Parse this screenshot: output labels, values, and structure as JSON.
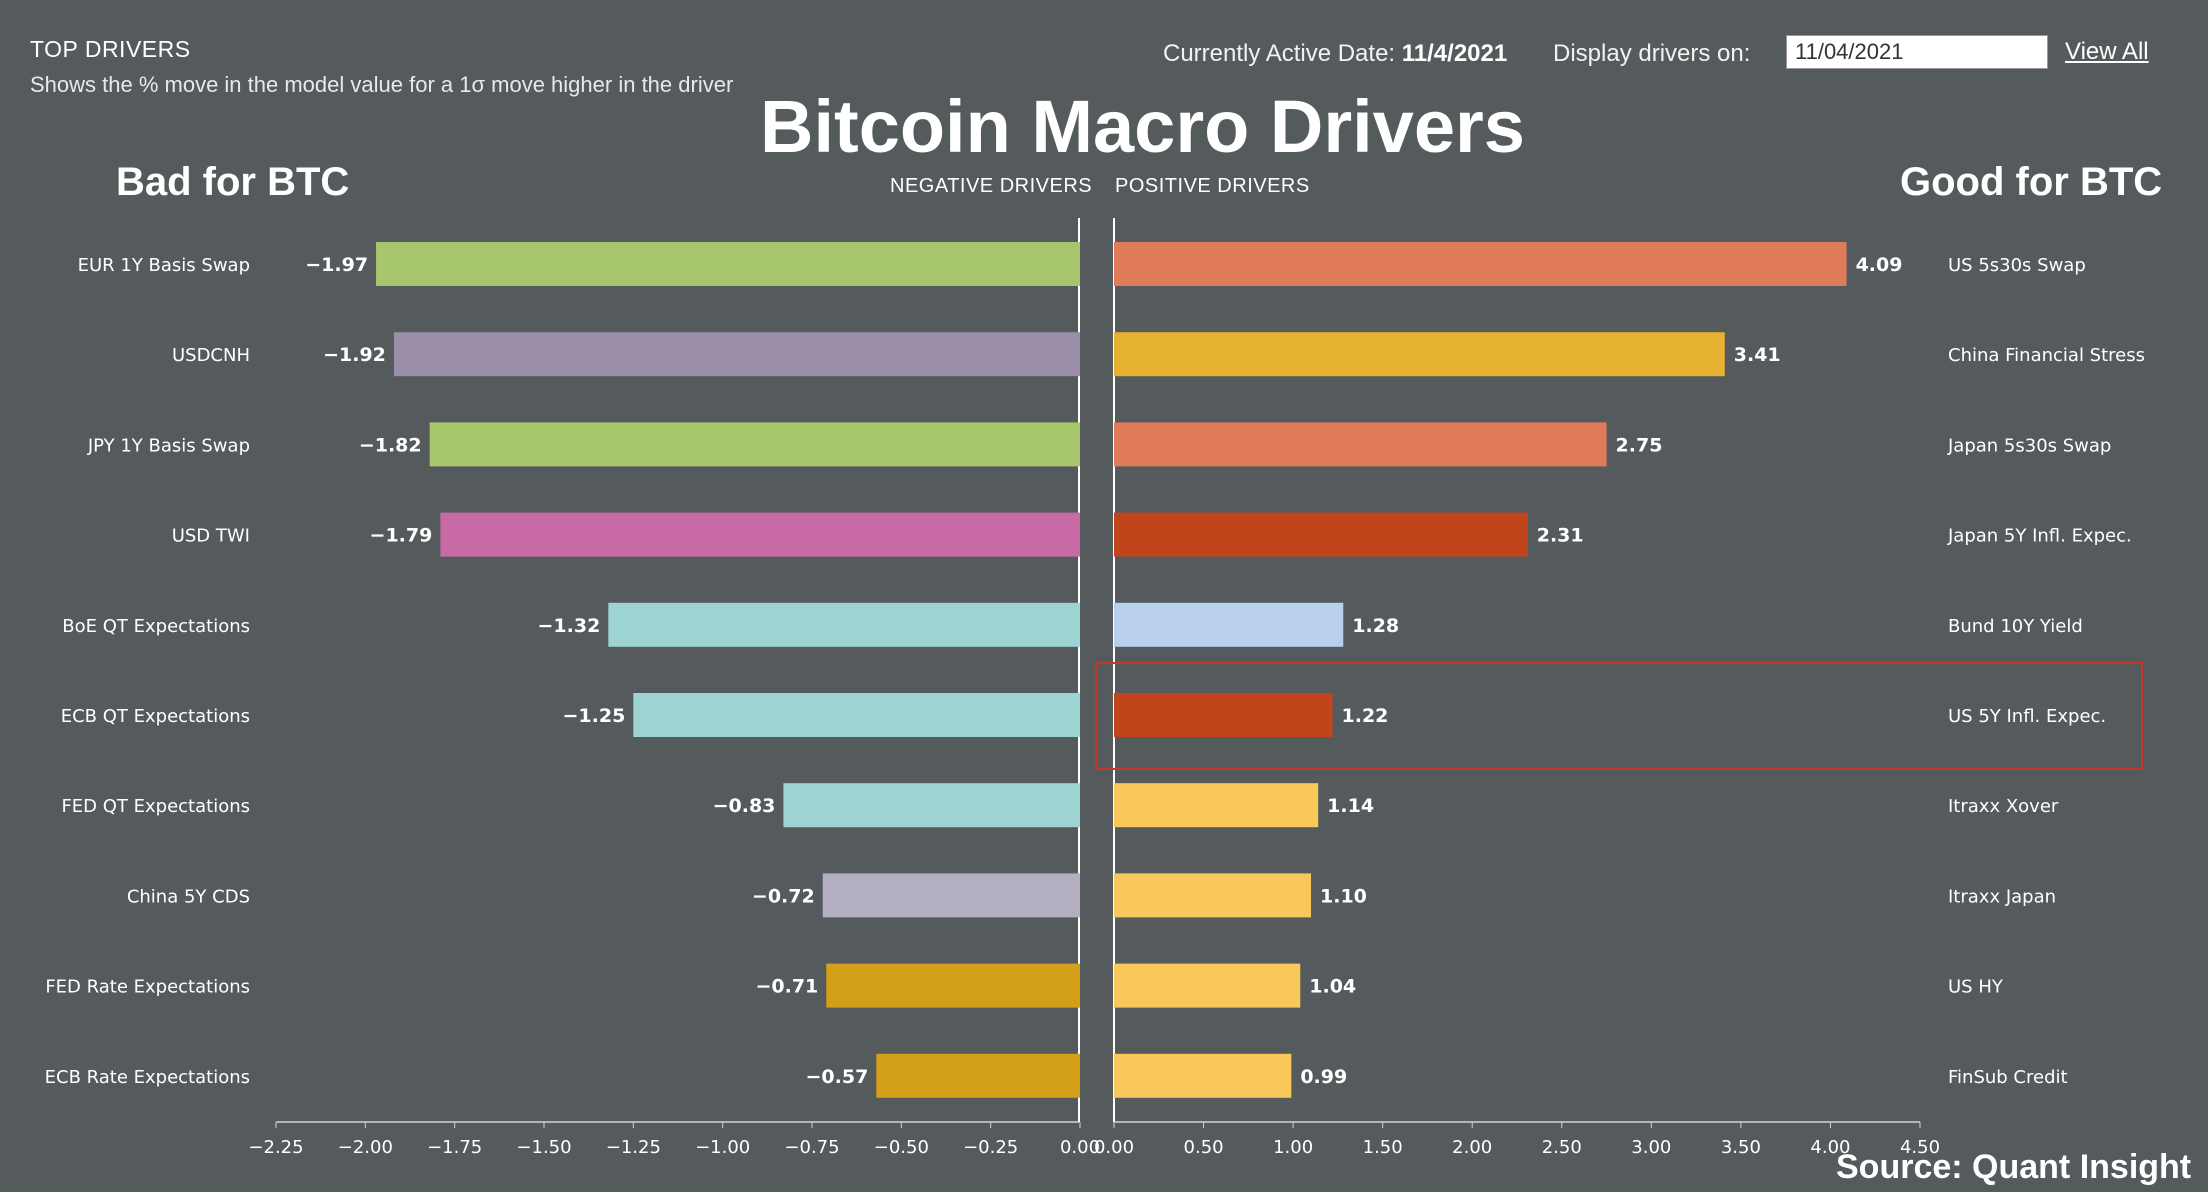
{
  "header": {
    "top_drivers": "TOP DRIVERS",
    "subtitle": "Shows the % move in the model value for a 1σ move higher in the driver",
    "active_date_label": "Currently Active Date:",
    "active_date_value": "11/4/2021",
    "display_label": "Display drivers on:",
    "display_date": "11/04/2021",
    "view_all": "View All"
  },
  "source": "Source: Quant Insight",
  "colors": {
    "background": "#555b5c",
    "highlight_box": "#c0392b",
    "axis": "#ffffff"
  },
  "chart_data": {
    "type": "bar",
    "title": "Bitcoin Macro Drivers",
    "left_heading": "Bad for BTC",
    "right_heading": "Good for BTC",
    "negative_label": "NEGATIVE DRIVERS",
    "positive_label": "POSITIVE DRIVERS",
    "negative": {
      "categories": [
        "EUR 1Y Basis Swap",
        "USDCNH",
        "JPY 1Y Basis Swap",
        "USD TWI",
        "BoE QT Expectations",
        "ECB QT Expectations",
        "FED QT Expectations",
        "China 5Y CDS",
        "FED Rate Expectations",
        "ECB Rate Expectations"
      ],
      "values": [
        -1.97,
        -1.92,
        -1.82,
        -1.79,
        -1.32,
        -1.25,
        -0.83,
        -0.72,
        -0.71,
        -0.57
      ],
      "labels": [
        "−1.97",
        "−1.92",
        "−1.82",
        "−1.79",
        "−1.32",
        "−1.25",
        "−0.83",
        "−0.72",
        "−0.71",
        "−0.57"
      ],
      "colors": [
        "#a8c66c",
        "#9b8faa",
        "#a8c66c",
        "#c76aa6",
        "#9dd3d3",
        "#9dd3d3",
        "#9dd3d3",
        "#b3aec2",
        "#d4a017",
        "#d4a017"
      ],
      "xlim": [
        -2.25,
        0
      ],
      "ticks": [
        "−2.25",
        "−2.00",
        "−1.75",
        "−1.50",
        "−1.25",
        "−1.00",
        "−0.75",
        "−0.50",
        "−0.25",
        "0.00"
      ]
    },
    "positive": {
      "categories": [
        "US 5s30s Swap",
        "China Financial Stress",
        "Japan 5s30s Swap",
        "Japan 5Y Infl. Expec.",
        "Bund 10Y Yield",
        "US 5Y Infl. Expec.",
        "Itraxx Xover",
        "Itraxx Japan",
        "US HY",
        "FinSub Credit"
      ],
      "values": [
        4.09,
        3.41,
        2.75,
        2.31,
        1.28,
        1.22,
        1.14,
        1.1,
        1.04,
        0.99
      ],
      "labels": [
        "4.09",
        "3.41",
        "2.75",
        "2.31",
        "1.28",
        "1.22",
        "1.14",
        "1.10",
        "1.04",
        "0.99"
      ],
      "colors": [
        "#e07b5a",
        "#e6b030",
        "#e07b5a",
        "#c0451a",
        "#b8cfee",
        "#c0451a",
        "#f8c95a",
        "#f8c95a",
        "#f8c95a",
        "#f8c95a"
      ],
      "xlim": [
        0,
        4.5
      ],
      "ticks": [
        "0.00",
        "0.50",
        "1.00",
        "1.50",
        "2.00",
        "2.50",
        "3.00",
        "3.50",
        "4.00",
        "4.50"
      ]
    },
    "highlighted": "US 5Y Infl. Expec."
  }
}
